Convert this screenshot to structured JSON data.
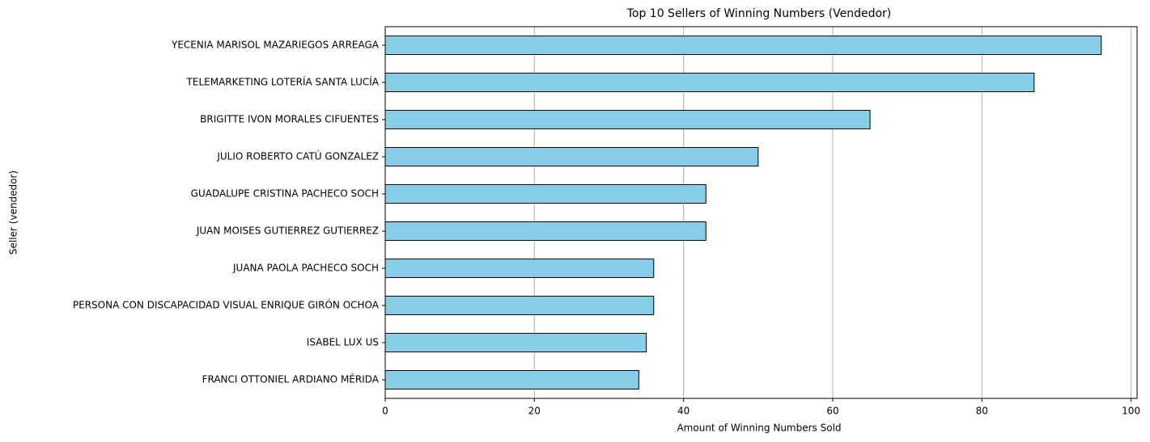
{
  "chart_data": {
    "type": "barh",
    "title": "Top 10 Sellers of Winning Numbers (Vendedor)",
    "x_label": "Amount of Winning Numbers Sold",
    "y_label": "Seller (vendedor)",
    "categories": [
      "YECENIA MARISOL MAZARIEGOS ARREAGA",
      "TELEMARKETING LOTERÍA SANTA LUCÍA",
      "BRIGITTE IVON MORALES CIFUENTES",
      "JULIO ROBERTO CATÚ GONZALEZ",
      "GUADALUPE CRISTINA PACHECO SOCH",
      "JUAN MOISES GUTIERREZ GUTIERREZ",
      "JUANA PAOLA PACHECO SOCH",
      "PERSONA CON DISCAPACIDAD VISUAL ENRIQUE GIRÓN OCHOA",
      "ISABEL LUX US",
      "FRANCI OTTONIEL ARDIANO MÉRIDA"
    ],
    "values": [
      96,
      87,
      65,
      50,
      43,
      43,
      36,
      36,
      35,
      34
    ],
    "color": "#87ceeb",
    "edge_color": "#000000",
    "xlim": [
      0,
      100.8
    ],
    "xticks": [
      0,
      20,
      40,
      60,
      80,
      100
    ],
    "grid": true
  }
}
